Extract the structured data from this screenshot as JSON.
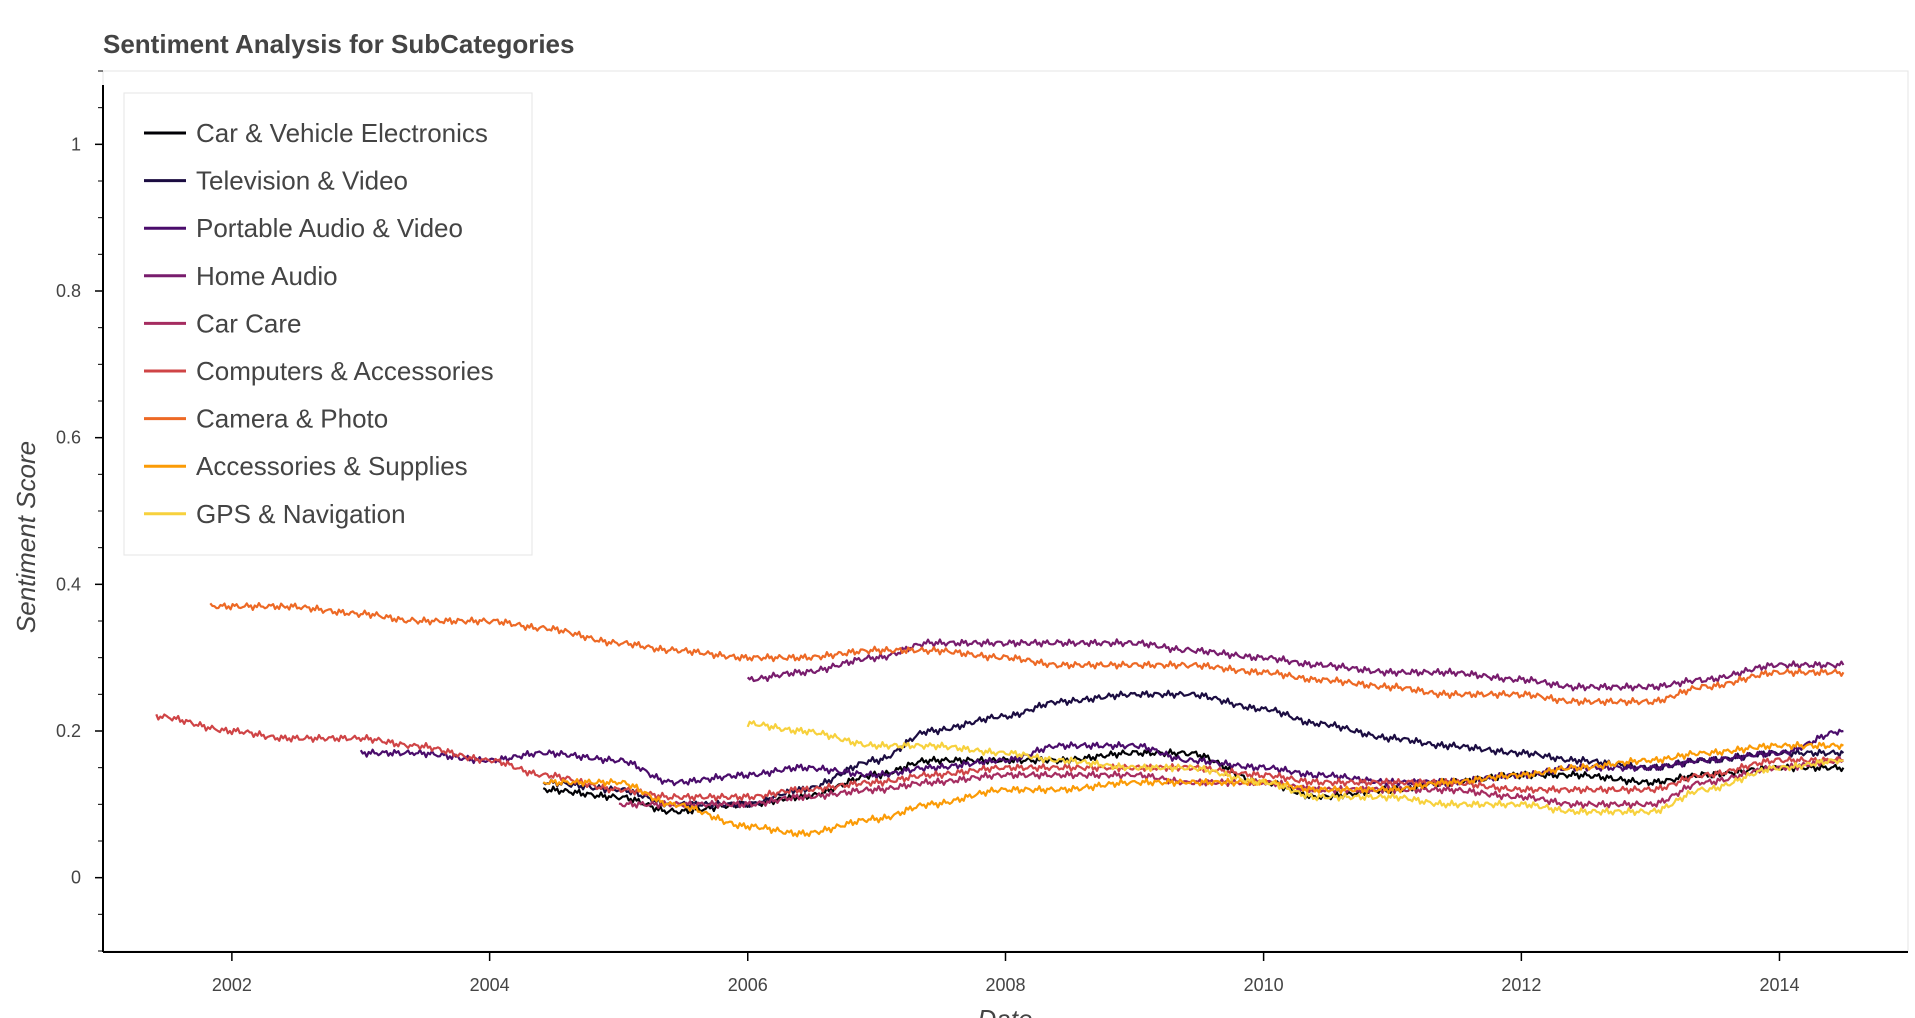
{
  "chart_data": {
    "type": "line",
    "title": "Sentiment Analysis for SubCategories",
    "xlabel": "Date",
    "ylabel": "Sentiment Score",
    "x_axis_type": "date",
    "xlim": [
      "2001-01-01",
      "2014-12-31"
    ],
    "ylim": [
      -0.1,
      1.1
    ],
    "x_ticks": [
      "2002",
      "2004",
      "2006",
      "2008",
      "2010",
      "2012",
      "2014"
    ],
    "y_ticks": [
      "0",
      "0.2",
      "0.4",
      "0.6",
      "0.8",
      "1"
    ],
    "grid": false,
    "legend_position": "top-left",
    "series": [
      {
        "name": "Car & Vehicle Electronics",
        "color": "#000004",
        "x": [
          "2004-06-01",
          "2005-01-01",
          "2005-06-01",
          "2006-01-01",
          "2006-06-01",
          "2007-01-01",
          "2007-06-01",
          "2008-01-01",
          "2008-06-01",
          "2009-01-01",
          "2009-06-01",
          "2010-01-01",
          "2010-06-01",
          "2011-01-01",
          "2011-06-01",
          "2012-01-01",
          "2012-06-01",
          "2013-01-01",
          "2013-06-01",
          "2014-01-01",
          "2014-07-01"
        ],
        "y": [
          0.12,
          0.11,
          0.09,
          0.1,
          0.11,
          0.14,
          0.16,
          0.16,
          0.16,
          0.17,
          0.17,
          0.13,
          0.11,
          0.12,
          0.13,
          0.14,
          0.14,
          0.13,
          0.14,
          0.15,
          0.15
        ]
      },
      {
        "name": "Television & Video",
        "color": "#1b0c41",
        "x": [
          "2004-06-01",
          "2005-01-01",
          "2005-06-01",
          "2006-01-01",
          "2006-06-01",
          "2007-01-01",
          "2007-06-01",
          "2008-01-01",
          "2008-06-01",
          "2009-01-01",
          "2009-06-01",
          "2010-01-01",
          "2010-06-01",
          "2011-01-01",
          "2011-06-01",
          "2012-01-01",
          "2012-06-01",
          "2013-01-01",
          "2013-06-01",
          "2014-01-01",
          "2014-07-01"
        ],
        "y": [
          0.13,
          0.12,
          0.1,
          0.1,
          0.12,
          0.16,
          0.2,
          0.22,
          0.24,
          0.25,
          0.25,
          0.23,
          0.21,
          0.19,
          0.18,
          0.17,
          0.16,
          0.15,
          0.16,
          0.17,
          0.17
        ]
      },
      {
        "name": "Portable Audio & Video",
        "color": "#4a0c6b",
        "x": [
          "2003-01-01",
          "2003-06-01",
          "2004-01-01",
          "2004-06-01",
          "2005-01-01",
          "2005-06-01",
          "2006-01-01",
          "2006-06-01",
          "2007-01-01",
          "2007-06-01",
          "2008-01-01",
          "2008-06-01",
          "2009-01-01",
          "2009-06-01",
          "2010-01-01",
          "2010-06-01",
          "2011-01-01",
          "2011-06-01",
          "2012-01-01",
          "2012-06-01",
          "2013-01-01",
          "2013-06-01",
          "2014-01-01",
          "2014-07-01"
        ],
        "y": [
          0.17,
          0.17,
          0.16,
          0.17,
          0.16,
          0.13,
          0.14,
          0.15,
          0.14,
          0.15,
          0.16,
          0.18,
          0.18,
          0.16,
          0.15,
          0.14,
          0.13,
          0.13,
          0.14,
          0.15,
          0.15,
          0.16,
          0.17,
          0.2
        ]
      },
      {
        "name": "Home Audio",
        "color": "#781c6d",
        "x": [
          "2006-01-01",
          "2006-06-01",
          "2007-01-01",
          "2007-06-01",
          "2008-01-01",
          "2008-06-01",
          "2009-01-01",
          "2009-06-01",
          "2010-01-01",
          "2010-06-01",
          "2011-01-01",
          "2011-06-01",
          "2012-01-01",
          "2012-06-01",
          "2013-01-01",
          "2013-06-01",
          "2014-01-01",
          "2014-07-01"
        ],
        "y": [
          0.27,
          0.28,
          0.3,
          0.32,
          0.32,
          0.32,
          0.32,
          0.31,
          0.3,
          0.29,
          0.28,
          0.28,
          0.27,
          0.26,
          0.26,
          0.27,
          0.29,
          0.29
        ]
      },
      {
        "name": "Car Care",
        "color": "#a52c60",
        "x": [
          "2005-01-01",
          "2005-06-01",
          "2006-01-01",
          "2006-06-01",
          "2007-01-01",
          "2007-06-01",
          "2008-01-01",
          "2008-06-01",
          "2009-01-01",
          "2009-06-01",
          "2010-01-01",
          "2010-06-01",
          "2011-01-01",
          "2011-06-01",
          "2012-01-01",
          "2012-06-01",
          "2013-01-01",
          "2013-06-01",
          "2014-01-01",
          "2014-07-01"
        ],
        "y": [
          0.1,
          0.1,
          0.1,
          0.11,
          0.12,
          0.13,
          0.14,
          0.14,
          0.14,
          0.13,
          0.13,
          0.12,
          0.12,
          0.12,
          0.11,
          0.1,
          0.1,
          0.13,
          0.15,
          0.16
        ]
      },
      {
        "name": "Computers & Accessories",
        "color": "#cf4446",
        "x": [
          "2001-06-01",
          "2002-01-01",
          "2002-06-01",
          "2003-01-01",
          "2003-06-01",
          "2004-01-01",
          "2004-06-01",
          "2005-01-01",
          "2005-06-01",
          "2006-01-01",
          "2006-06-01",
          "2007-01-01",
          "2007-06-01",
          "2008-01-01",
          "2008-06-01",
          "2009-01-01",
          "2009-06-01",
          "2010-01-01",
          "2010-06-01",
          "2011-01-01",
          "2011-06-01",
          "2012-01-01",
          "2012-06-01",
          "2013-01-01",
          "2013-06-01",
          "2014-01-01",
          "2014-07-01"
        ],
        "y": [
          0.22,
          0.2,
          0.19,
          0.19,
          0.18,
          0.16,
          0.14,
          0.12,
          0.11,
          0.11,
          0.12,
          0.13,
          0.14,
          0.15,
          0.15,
          0.15,
          0.15,
          0.14,
          0.13,
          0.13,
          0.13,
          0.12,
          0.12,
          0.12,
          0.14,
          0.16,
          0.16
        ]
      },
      {
        "name": "Camera & Photo",
        "color": "#ed6925",
        "x": [
          "2001-11-01",
          "2002-06-01",
          "2003-01-01",
          "2003-06-01",
          "2004-01-01",
          "2004-06-01",
          "2005-01-01",
          "2005-06-01",
          "2006-01-01",
          "2006-06-01",
          "2007-01-01",
          "2007-06-01",
          "2008-01-01",
          "2008-06-01",
          "2009-01-01",
          "2009-06-01",
          "2010-01-01",
          "2010-06-01",
          "2011-01-01",
          "2011-06-01",
          "2012-01-01",
          "2012-06-01",
          "2013-01-01",
          "2013-06-01",
          "2014-01-01",
          "2014-07-01"
        ],
        "y": [
          0.37,
          0.37,
          0.36,
          0.35,
          0.35,
          0.34,
          0.32,
          0.31,
          0.3,
          0.3,
          0.31,
          0.31,
          0.3,
          0.29,
          0.29,
          0.29,
          0.28,
          0.27,
          0.26,
          0.25,
          0.25,
          0.24,
          0.24,
          0.26,
          0.28,
          0.28
        ]
      },
      {
        "name": "Accessories & Supplies",
        "color": "#fb9b06",
        "x": [
          "2004-06-01",
          "2005-01-01",
          "2005-06-01",
          "2006-01-01",
          "2006-06-01",
          "2007-01-01",
          "2007-06-01",
          "2008-01-01",
          "2008-06-01",
          "2009-01-01",
          "2009-06-01",
          "2010-01-01",
          "2010-06-01",
          "2011-01-01",
          "2011-06-01",
          "2012-01-01",
          "2012-06-01",
          "2013-01-01",
          "2013-06-01",
          "2014-01-01",
          "2014-07-01"
        ],
        "y": [
          0.13,
          0.13,
          0.1,
          0.07,
          0.06,
          0.08,
          0.1,
          0.12,
          0.12,
          0.13,
          0.13,
          0.13,
          0.12,
          0.12,
          0.13,
          0.14,
          0.15,
          0.16,
          0.17,
          0.18,
          0.18
        ]
      },
      {
        "name": "GPS & Navigation",
        "color": "#f7d13d",
        "x": [
          "2006-01-01",
          "2006-06-01",
          "2007-01-01",
          "2007-06-01",
          "2008-01-01",
          "2008-06-01",
          "2009-01-01",
          "2009-06-01",
          "2010-01-01",
          "2010-06-01",
          "2011-01-01",
          "2011-06-01",
          "2012-01-01",
          "2012-06-01",
          "2013-01-01",
          "2013-06-01",
          "2014-01-01",
          "2014-07-01"
        ],
        "y": [
          0.21,
          0.2,
          0.18,
          0.18,
          0.17,
          0.16,
          0.15,
          0.15,
          0.13,
          0.11,
          0.11,
          0.1,
          0.1,
          0.09,
          0.09,
          0.12,
          0.15,
          0.16
        ]
      }
    ]
  }
}
